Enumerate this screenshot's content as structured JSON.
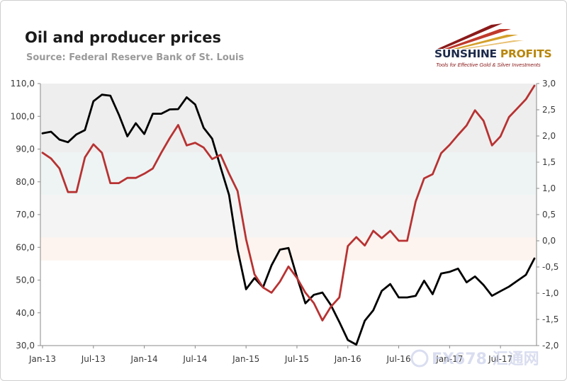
{
  "header": {
    "title": "Oil and producer prices",
    "source": "Source: Federal Reserve Bank of St. Louis"
  },
  "logo": {
    "name_part1": "SUNSHINE",
    "name_part2": "PROFITS",
    "tagline": "Tools for Effective Gold & Silver Investments"
  },
  "watermark": {
    "text": "FX678 汇通网"
  },
  "colors": {
    "left_series": "#000000",
    "right_series": "#b83232",
    "band_top": "#eeeeee",
    "band_mid": "#eef4f4",
    "band_low": "#f4f4f4",
    "band_bottom": "#fdf4ef",
    "grid": "#e0e0e0",
    "logo_rays": [
      "#8b1a1a",
      "#c0392b",
      "#d4a02a",
      "#e8c070"
    ]
  },
  "chart_data": {
    "type": "line",
    "title": "Oil and producer prices",
    "x_tick_labels": [
      "Jan-13",
      "Jul-13",
      "Jan-14",
      "Jul-14",
      "Jan-15",
      "Jul-15",
      "Jan-16",
      "Jul-16",
      "Jan-17",
      "Jul-17"
    ],
    "x_tick_months": [
      0,
      6,
      12,
      18,
      24,
      30,
      36,
      42,
      48,
      54
    ],
    "x_range": [
      "Jan-13",
      "Dec-17"
    ],
    "grid": false,
    "y_left": {
      "ylim": [
        30,
        110
      ],
      "ticks": [
        "30,0",
        "40,0",
        "50,0",
        "60,0",
        "70,0",
        "80,0",
        "90,0",
        "100,0",
        "110,0"
      ],
      "tick_values": [
        30,
        40,
        50,
        60,
        70,
        80,
        90,
        100,
        110
      ]
    },
    "y_right": {
      "ylim": [
        -2.0,
        3.0
      ],
      "ticks": [
        "-2,0",
        "-1,5",
        "-1,0",
        "-0,5",
        "0,0",
        "0,5",
        "1,0",
        "1,5",
        "2,0",
        "2,5",
        "3,0"
      ],
      "tick_values": [
        -2.0,
        -1.5,
        -1.0,
        -0.5,
        0.0,
        0.5,
        1.0,
        1.5,
        2.0,
        2.5,
        3.0
      ]
    },
    "series": [
      {
        "axis": "left",
        "color": "#000000",
        "values": [
          94.8,
          95.3,
          92.9,
          92.1,
          94.5,
          95.8,
          104.6,
          106.6,
          106.3,
          100.5,
          93.9,
          97.9,
          94.6,
          100.8,
          100.8,
          102.1,
          102.2,
          105.8,
          103.6,
          96.5,
          93.2,
          84.4,
          76.0,
          59.3,
          47.2,
          50.6,
          47.8,
          54.5,
          59.3,
          59.8,
          50.9,
          42.9,
          45.5,
          46.2,
          42.4,
          37.2,
          31.7,
          30.3,
          37.6,
          40.8,
          46.7,
          48.8,
          44.7,
          44.7,
          45.2,
          49.8,
          45.7,
          52.0,
          52.5,
          53.5,
          49.3,
          51.1,
          48.5,
          45.2,
          46.6,
          48.0,
          49.8,
          51.6,
          56.6
        ]
      },
      {
        "axis": "right",
        "color": "#b83232",
        "values": [
          1.68,
          1.57,
          1.38,
          0.93,
          0.93,
          1.59,
          1.84,
          1.68,
          1.1,
          1.1,
          1.2,
          1.2,
          1.28,
          1.38,
          1.68,
          1.96,
          2.21,
          1.82,
          1.87,
          1.78,
          1.56,
          1.64,
          1.28,
          0.95,
          0.03,
          -0.64,
          -0.89,
          -0.99,
          -0.78,
          -0.49,
          -0.71,
          -0.99,
          -1.19,
          -1.52,
          -1.26,
          -1.08,
          -0.1,
          0.07,
          -0.09,
          0.19,
          0.05,
          0.19,
          0.0,
          0.0,
          0.75,
          1.19,
          1.27,
          1.67,
          1.83,
          2.02,
          2.2,
          2.49,
          2.29,
          1.82,
          1.99,
          2.36,
          2.53,
          2.7,
          2.96
        ]
      }
    ]
  }
}
